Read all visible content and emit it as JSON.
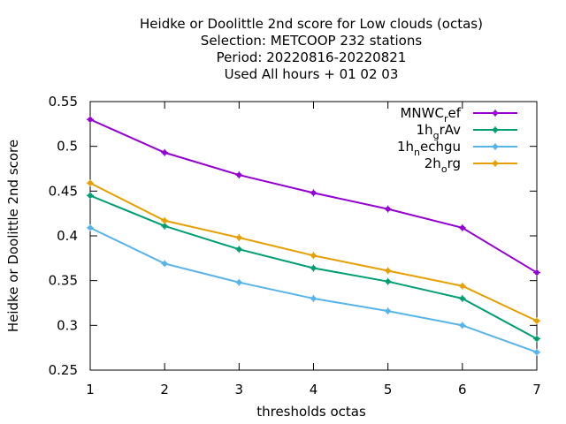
{
  "chart_data": {
    "type": "line",
    "title_lines": [
      "Heidke or Doolittle 2nd score  for Low clouds (octas)",
      "Selection: METCOOP    232 stations",
      "Period: 20220816-20220821",
      "Used  All hours  + 01 02 03"
    ],
    "xlabel": "thresholds octas",
    "ylabel": "Heidke or Doolittle 2nd score",
    "x": [
      1,
      2,
      3,
      4,
      5,
      6,
      7
    ],
    "xlim": [
      1,
      7
    ],
    "ylim": [
      0.25,
      0.55
    ],
    "x_ticks": [
      "1",
      "2",
      "3",
      "4",
      "5",
      "6",
      "7"
    ],
    "y_ticks": [
      "0.25",
      "0.3",
      "0.35",
      "0.4",
      "0.45",
      "0.5",
      "0.55"
    ],
    "grid": false,
    "legend_position": "top-right",
    "series": [
      {
        "name": "MNWC",
        "subscript": "r",
        "suffix": "ef",
        "color": "#9400d3",
        "values": [
          0.53,
          0.493,
          0.468,
          0.448,
          0.43,
          0.409,
          0.359
        ]
      },
      {
        "name": "1h",
        "subscript": "g",
        "suffix": "rAv",
        "color": "#009e73",
        "values": [
          0.445,
          0.411,
          0.385,
          0.364,
          0.349,
          0.33,
          0.285
        ]
      },
      {
        "name": "1h",
        "subscript": "n",
        "suffix": "echgu",
        "color": "#56b4e9",
        "values": [
          0.409,
          0.369,
          0.348,
          0.33,
          0.316,
          0.3,
          0.27
        ]
      },
      {
        "name": "2h",
        "subscript": "o",
        "suffix": "rg",
        "color": "#e69f00",
        "values": [
          0.459,
          0.417,
          0.398,
          0.378,
          0.361,
          0.344,
          0.305
        ]
      }
    ]
  }
}
